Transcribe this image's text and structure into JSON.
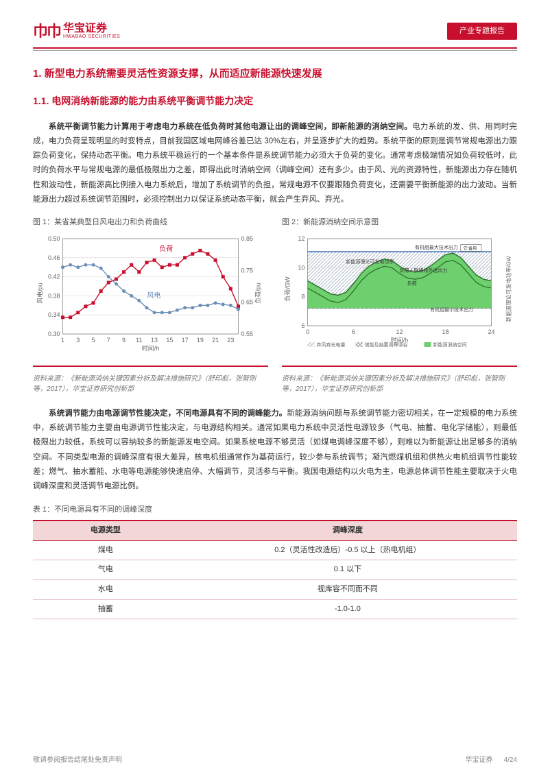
{
  "header": {
    "logo_cn": "华宝证券",
    "logo_en": "HWABAO SECURITIES",
    "badge": "产业专题报告"
  },
  "section1": {
    "num": "1.",
    "title": "新型电力系统需要灵活性资源支撑，从而适应新能源快速发展"
  },
  "section11": {
    "num": "1.1.",
    "title": "电网消纳新能源的能力由系统平衡调节能力决定"
  },
  "para1": {
    "lead": "系统平衡调节能力计算用于考虑电力系统在低负荷时其他电源让出的调峰空间，即新能源的消纳空间。",
    "body": "电力系统的发、供、用同时完成，电力负荷呈现明显的时变特点，目前我国区域电网峰谷差已达 30%左右，并呈逐步扩大的趋势。系统平衡的原则是调节常规电源出力跟踪负荷变化，保持动态平衡。电力系统平稳运行的一个基本条件是系统调节能力必须大于负荷的变化。通常考虑极端情况如负荷较低时，此时的负荷水平与常规电源的最低极限出力之差，即得出此时消纳空间（调峰空间）还有多少。由于风、光的资源特性，新能源出力存在随机性和波动性，新能源高比例接入电力系统后，增加了系统调节的负担，常规电源不仅要跟随负荷变化，还需要平衡新能源的出力波动。当新能源出力超过系统调节范围时，必须控制出力以保证系统动态平衡，就会产生弃风、弃光。"
  },
  "fig1": {
    "title": "图 1：某省某典型日风电出力和负荷曲线",
    "source": "资料来源：《新能源消纳关键因素分析及解决措施研究》（舒印彪，张智刚等，2017），华宝证券研究创新部",
    "xlabel": "时间/h",
    "ylabel_left": "风电/pu",
    "ylabel_right": "负荷/pu",
    "x": [
      1,
      3,
      5,
      7,
      9,
      11,
      13,
      15,
      17,
      19,
      21,
      23
    ],
    "left_ticks": [
      0.3,
      0.34,
      0.38,
      0.42,
      0.46,
      0.5
    ],
    "right_ticks": [
      0.55,
      0.65,
      0.75,
      0.85
    ],
    "line_wind": {
      "label": "风电",
      "color": "#6b8fb8",
      "marker": "circle",
      "values": [
        0.44,
        0.445,
        0.44,
        0.445,
        0.445,
        0.438,
        0.42,
        0.405,
        0.39,
        0.38,
        0.37,
        0.355,
        0.345,
        0.345,
        0.345,
        0.35,
        0.355,
        0.355,
        0.36,
        0.36,
        0.365,
        0.362,
        0.36,
        0.352
      ]
    },
    "line_load": {
      "label": "负荷",
      "color": "#c8102e",
      "marker": "square",
      "values": [
        0.335,
        0.335,
        0.345,
        0.358,
        0.365,
        0.39,
        0.408,
        0.415,
        0.43,
        0.445,
        0.43,
        0.45,
        0.455,
        0.44,
        0.445,
        0.445,
        0.46,
        0.468,
        0.475,
        0.468,
        0.455,
        0.42,
        0.395,
        0.358
      ]
    },
    "bg": "#ffffff",
    "grid": "#d0d0d0",
    "axis_color": "#888888",
    "font_size": 9
  },
  "fig2": {
    "title": "图 2：新能源消纳空间示意图",
    "source": "资料来源：《新能源消纳关键因素分析及解决措施研究》（舒印彪，张智刚等，2017），华宝证券研究创新部",
    "xlabel": "时间/h",
    "ylabel_left": "负荷/GW",
    "ylabel_right": "新能源理论可发电功率/GW",
    "x_ticks": [
      0,
      6,
      12,
      18,
      24
    ],
    "y_ticks": [
      6,
      8,
      10,
      12
    ],
    "top_line_color": "#4a7ab8",
    "load_line_color": "#2a6b2a",
    "fill_color": "#6dcf6d",
    "hatch_color": "#9aa6b8",
    "min_out_color": "#888888",
    "min_out_y": 7.2,
    "top_y": 11.1,
    "labels": {
      "theory": "新能源理论可发电功率",
      "max_out": "有机组最大技术出力",
      "load_line": "负荷＋联络线外送出力",
      "load": "负荷",
      "reserve": "'正'备用",
      "min_out": "有机组最小技术出力"
    },
    "legend": [
      "弃风弃光电量",
      "储能及抽蓄调峰填谷",
      "新能源消纳空间"
    ],
    "bg": "#ffffff",
    "grid": "#d0d0d0",
    "axis_color": "#888888",
    "font_size": 9
  },
  "para2": {
    "lead": "系统调节能力由电源调节性能决定，不同电源具有不同的调峰能力。",
    "body": "新能源消纳问题与系统调节能力密切相关，在一定规模的电力系统中，系统调节能力主要由电源调节性能决定，与电源结构相关。通常如果电力系统中灵活性电源较多（气电、抽蓄、电化学储能），则最低极限出力较低，系统可以容纳较多的新能源发电空间。如果系统电源不够灵活（如煤电调峰深度不够），则难以为新能源让出足够多的消纳空间。不同类型电源的调峰深度有很大差异，核电机组通常作为基荷运行，较少参与系统调节；凝汽燃煤机组和供热火电机组调节性能较差；燃气、抽水蓄能、水电等电源能够快速启停、大幅调节，灵活参与平衡。我国电源结构以火电为主，电源总体调节性能主要取决于火电调峰深度和灵活调节电源比例。"
  },
  "table1": {
    "title": "表 1：不同电源具有不同的调峰深度",
    "headers": [
      "电源类型",
      "调峰深度"
    ],
    "rows": [
      [
        "煤电",
        "0.2（灵活性改造后）-0.5 以上（热电机组）"
      ],
      [
        "气电",
        "0.1 以下"
      ],
      [
        "水电",
        "视库容不同而不同"
      ],
      [
        "抽蓄",
        "-1.0-1.0"
      ]
    ]
  },
  "footer": {
    "left": "敬请参阅报告结尾处免责声明",
    "company": "华宝证券",
    "page": "4/24"
  },
  "colors": {
    "brand": "#c8102e"
  }
}
